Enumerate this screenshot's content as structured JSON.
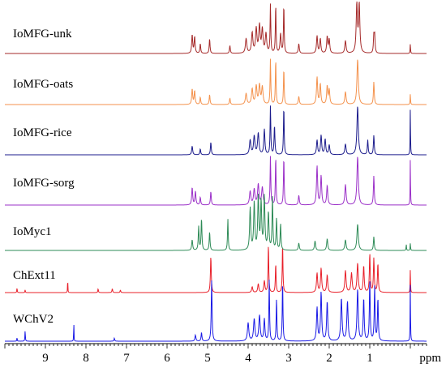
{
  "chart_data": {
    "type": "line",
    "title": "",
    "xlabel": "ppm",
    "ylabel": "",
    "xlim": [
      10.0,
      -0.4
    ],
    "x_reversed": true,
    "x_ticks": [
      "9",
      "8",
      "7",
      "6",
      "5",
      "4",
      "3",
      "2",
      "1"
    ],
    "x_tick_values": [
      9,
      8,
      7,
      6,
      5,
      4,
      3,
      2,
      1
    ],
    "grid": false,
    "legend": "none",
    "series": [
      {
        "name": "IoMFG-unk",
        "color": "#a52a2a",
        "peaks": [
          {
            "ppm": 5.38,
            "h": 0.38,
            "w": 0.014
          },
          {
            "ppm": 5.32,
            "h": 0.34,
            "w": 0.014
          },
          {
            "ppm": 5.18,
            "h": 0.2,
            "w": 0.012
          },
          {
            "ppm": 4.95,
            "h": 0.3,
            "w": 0.012
          },
          {
            "ppm": 4.45,
            "h": 0.16,
            "w": 0.012
          },
          {
            "ppm": 4.05,
            "h": 0.3,
            "w": 0.02
          },
          {
            "ppm": 3.9,
            "h": 0.42,
            "w": 0.02
          },
          {
            "ppm": 3.8,
            "h": 0.5,
            "w": 0.02
          },
          {
            "ppm": 3.72,
            "h": 0.56,
            "w": 0.02
          },
          {
            "ppm": 3.65,
            "h": 0.48,
            "w": 0.02
          },
          {
            "ppm": 3.56,
            "h": 0.4,
            "w": 0.02
          },
          {
            "ppm": 3.45,
            "h": 1.0,
            "w": 0.01
          },
          {
            "ppm": 3.32,
            "h": 1.0,
            "w": 0.01
          },
          {
            "ppm": 3.2,
            "h": 0.4,
            "w": 0.016
          },
          {
            "ppm": 3.12,
            "h": 1.0,
            "w": 0.01
          },
          {
            "ppm": 2.75,
            "h": 0.2,
            "w": 0.014
          },
          {
            "ppm": 2.3,
            "h": 0.36,
            "w": 0.016
          },
          {
            "ppm": 2.22,
            "h": 0.3,
            "w": 0.016
          },
          {
            "ppm": 2.05,
            "h": 0.34,
            "w": 0.016
          },
          {
            "ppm": 2.0,
            "h": 0.28,
            "w": 0.016
          },
          {
            "ppm": 1.6,
            "h": 0.26,
            "w": 0.018
          },
          {
            "ppm": 1.32,
            "h": 1.0,
            "w": 0.018
          },
          {
            "ppm": 1.26,
            "h": 1.0,
            "w": 0.018
          },
          {
            "ppm": 0.9,
            "h": 0.34,
            "w": 0.012
          },
          {
            "ppm": 0.88,
            "h": 0.36,
            "w": 0.012
          },
          {
            "ppm": 0.0,
            "h": 0.2,
            "w": 0.006
          }
        ]
      },
      {
        "name": "IoMFG-oats",
        "color": "#f4924d",
        "peaks": [
          {
            "ppm": 5.38,
            "h": 0.34,
            "w": 0.014
          },
          {
            "ppm": 5.32,
            "h": 0.3,
            "w": 0.014
          },
          {
            "ppm": 5.18,
            "h": 0.16,
            "w": 0.012
          },
          {
            "ppm": 4.95,
            "h": 0.22,
            "w": 0.012
          },
          {
            "ppm": 4.45,
            "h": 0.14,
            "w": 0.012
          },
          {
            "ppm": 4.05,
            "h": 0.24,
            "w": 0.02
          },
          {
            "ppm": 3.9,
            "h": 0.34,
            "w": 0.02
          },
          {
            "ppm": 3.8,
            "h": 0.4,
            "w": 0.02
          },
          {
            "ppm": 3.72,
            "h": 0.42,
            "w": 0.02
          },
          {
            "ppm": 3.65,
            "h": 0.38,
            "w": 0.02
          },
          {
            "ppm": 3.45,
            "h": 1.0,
            "w": 0.01
          },
          {
            "ppm": 3.32,
            "h": 1.0,
            "w": 0.01
          },
          {
            "ppm": 3.12,
            "h": 0.8,
            "w": 0.01
          },
          {
            "ppm": 2.75,
            "h": 0.18,
            "w": 0.014
          },
          {
            "ppm": 2.3,
            "h": 0.6,
            "w": 0.016
          },
          {
            "ppm": 2.22,
            "h": 0.45,
            "w": 0.016
          },
          {
            "ppm": 2.05,
            "h": 0.4,
            "w": 0.016
          },
          {
            "ppm": 2.0,
            "h": 0.32,
            "w": 0.016
          },
          {
            "ppm": 1.6,
            "h": 0.28,
            "w": 0.018
          },
          {
            "ppm": 1.3,
            "h": 1.0,
            "w": 0.02
          },
          {
            "ppm": 0.9,
            "h": 0.5,
            "w": 0.012
          },
          {
            "ppm": 0.0,
            "h": 0.24,
            "w": 0.006
          }
        ]
      },
      {
        "name": "IoMFG-rice",
        "color": "#1c1c8c",
        "peaks": [
          {
            "ppm": 5.38,
            "h": 0.18,
            "w": 0.014
          },
          {
            "ppm": 5.18,
            "h": 0.12,
            "w": 0.012
          },
          {
            "ppm": 4.92,
            "h": 0.26,
            "w": 0.012
          },
          {
            "ppm": 3.95,
            "h": 0.3,
            "w": 0.02
          },
          {
            "ppm": 3.85,
            "h": 0.38,
            "w": 0.02
          },
          {
            "ppm": 3.75,
            "h": 0.44,
            "w": 0.02
          },
          {
            "ppm": 3.6,
            "h": 0.52,
            "w": 0.016
          },
          {
            "ppm": 3.45,
            "h": 1.0,
            "w": 0.01
          },
          {
            "ppm": 3.35,
            "h": 0.6,
            "w": 0.012
          },
          {
            "ppm": 3.12,
            "h": 1.0,
            "w": 0.01
          },
          {
            "ppm": 2.3,
            "h": 0.3,
            "w": 0.016
          },
          {
            "ppm": 2.2,
            "h": 0.4,
            "w": 0.016
          },
          {
            "ppm": 2.1,
            "h": 0.32,
            "w": 0.016
          },
          {
            "ppm": 2.0,
            "h": 0.2,
            "w": 0.016
          },
          {
            "ppm": 1.6,
            "h": 0.22,
            "w": 0.018
          },
          {
            "ppm": 1.3,
            "h": 1.0,
            "w": 0.02
          },
          {
            "ppm": 1.05,
            "h": 0.3,
            "w": 0.012
          },
          {
            "ppm": 0.9,
            "h": 0.4,
            "w": 0.012
          },
          {
            "ppm": 0.0,
            "h": 1.0,
            "w": 0.005
          }
        ]
      },
      {
        "name": "IoMFG-sorg",
        "color": "#9b30c8",
        "peaks": [
          {
            "ppm": 5.38,
            "h": 0.36,
            "w": 0.014
          },
          {
            "ppm": 5.3,
            "h": 0.28,
            "w": 0.014
          },
          {
            "ppm": 5.18,
            "h": 0.16,
            "w": 0.012
          },
          {
            "ppm": 4.92,
            "h": 0.28,
            "w": 0.012
          },
          {
            "ppm": 3.95,
            "h": 0.28,
            "w": 0.02
          },
          {
            "ppm": 3.85,
            "h": 0.32,
            "w": 0.02
          },
          {
            "ppm": 3.75,
            "h": 0.42,
            "w": 0.02
          },
          {
            "ppm": 3.65,
            "h": 0.36,
            "w": 0.02
          },
          {
            "ppm": 3.45,
            "h": 1.0,
            "w": 0.01
          },
          {
            "ppm": 3.32,
            "h": 1.0,
            "w": 0.01
          },
          {
            "ppm": 3.12,
            "h": 1.0,
            "w": 0.01
          },
          {
            "ppm": 2.75,
            "h": 0.2,
            "w": 0.014
          },
          {
            "ppm": 2.3,
            "h": 0.8,
            "w": 0.016
          },
          {
            "ppm": 2.2,
            "h": 0.6,
            "w": 0.016
          },
          {
            "ppm": 2.05,
            "h": 0.4,
            "w": 0.016
          },
          {
            "ppm": 1.6,
            "h": 0.42,
            "w": 0.018
          },
          {
            "ppm": 1.3,
            "h": 1.0,
            "w": 0.02
          },
          {
            "ppm": 0.9,
            "h": 0.6,
            "w": 0.012
          },
          {
            "ppm": 0.0,
            "h": 1.0,
            "w": 0.005
          }
        ]
      },
      {
        "name": "IoMyc1",
        "color": "#2e8b57",
        "peaks": [
          {
            "ppm": 5.38,
            "h": 0.2,
            "w": 0.014
          },
          {
            "ppm": 5.22,
            "h": 0.45,
            "w": 0.012
          },
          {
            "ppm": 5.15,
            "h": 0.6,
            "w": 0.012
          },
          {
            "ppm": 4.95,
            "h": 0.35,
            "w": 0.012
          },
          {
            "ppm": 4.5,
            "h": 0.6,
            "w": 0.01
          },
          {
            "ppm": 3.95,
            "h": 0.8,
            "w": 0.016
          },
          {
            "ppm": 3.85,
            "h": 0.9,
            "w": 0.016
          },
          {
            "ppm": 3.75,
            "h": 1.0,
            "w": 0.016
          },
          {
            "ppm": 3.68,
            "h": 0.9,
            "w": 0.016
          },
          {
            "ppm": 3.6,
            "h": 1.0,
            "w": 0.016
          },
          {
            "ppm": 3.5,
            "h": 0.7,
            "w": 0.016
          },
          {
            "ppm": 3.4,
            "h": 1.0,
            "w": 0.012
          },
          {
            "ppm": 3.3,
            "h": 0.6,
            "w": 0.012
          },
          {
            "ppm": 3.2,
            "h": 0.5,
            "w": 0.012
          },
          {
            "ppm": 2.75,
            "h": 0.14,
            "w": 0.014
          },
          {
            "ppm": 2.35,
            "h": 0.18,
            "w": 0.016
          },
          {
            "ppm": 2.05,
            "h": 0.22,
            "w": 0.016
          },
          {
            "ppm": 1.6,
            "h": 0.2,
            "w": 0.018
          },
          {
            "ppm": 1.3,
            "h": 0.5,
            "w": 0.02
          },
          {
            "ppm": 0.9,
            "h": 0.26,
            "w": 0.012
          },
          {
            "ppm": 0.1,
            "h": 0.12,
            "w": 0.006
          },
          {
            "ppm": 0.0,
            "h": 0.14,
            "w": 0.006
          }
        ]
      },
      {
        "name": "ChExt11",
        "color": "#e8202a",
        "peaks": [
          {
            "ppm": 9.7,
            "h": 0.1,
            "w": 0.006
          },
          {
            "ppm": 9.5,
            "h": 0.06,
            "w": 0.006
          },
          {
            "ppm": 8.45,
            "h": 0.35,
            "w": 0.004
          },
          {
            "ppm": 7.7,
            "h": 0.08,
            "w": 0.008
          },
          {
            "ppm": 7.35,
            "h": 0.08,
            "w": 0.01
          },
          {
            "ppm": 7.15,
            "h": 0.05,
            "w": 0.01
          },
          {
            "ppm": 4.92,
            "h": 0.75,
            "w": 0.012
          },
          {
            "ppm": 3.9,
            "h": 0.12,
            "w": 0.016
          },
          {
            "ppm": 3.75,
            "h": 0.18,
            "w": 0.016
          },
          {
            "ppm": 3.6,
            "h": 0.24,
            "w": 0.016
          },
          {
            "ppm": 3.5,
            "h": 1.0,
            "w": 0.01
          },
          {
            "ppm": 3.32,
            "h": 0.6,
            "w": 0.01
          },
          {
            "ppm": 3.15,
            "h": 1.0,
            "w": 0.01
          },
          {
            "ppm": 2.3,
            "h": 0.4,
            "w": 0.016
          },
          {
            "ppm": 2.2,
            "h": 0.5,
            "w": 0.016
          },
          {
            "ppm": 2.05,
            "h": 0.36,
            "w": 0.016
          },
          {
            "ppm": 1.6,
            "h": 0.45,
            "w": 0.018
          },
          {
            "ppm": 1.45,
            "h": 0.4,
            "w": 0.018
          },
          {
            "ppm": 1.3,
            "h": 0.6,
            "w": 0.018
          },
          {
            "ppm": 1.15,
            "h": 0.55,
            "w": 0.014
          },
          {
            "ppm": 1.0,
            "h": 0.8,
            "w": 0.012
          },
          {
            "ppm": 0.9,
            "h": 0.7,
            "w": 0.012
          },
          {
            "ppm": 0.8,
            "h": 0.6,
            "w": 0.012
          },
          {
            "ppm": 0.0,
            "h": 0.5,
            "w": 0.005
          }
        ]
      },
      {
        "name": "WChV2",
        "color": "#1a1ae6",
        "peaks": [
          {
            "ppm": 9.5,
            "h": 0.18,
            "w": 0.006
          },
          {
            "ppm": 9.7,
            "h": 0.06,
            "w": 0.006
          },
          {
            "ppm": 8.3,
            "h": 0.36,
            "w": 0.004
          },
          {
            "ppm": 7.3,
            "h": 0.05,
            "w": 0.01
          },
          {
            "ppm": 5.3,
            "h": 0.1,
            "w": 0.014
          },
          {
            "ppm": 5.15,
            "h": 0.14,
            "w": 0.012
          },
          {
            "ppm": 4.9,
            "h": 1.0,
            "w": 0.012
          },
          {
            "ppm": 4.0,
            "h": 0.3,
            "w": 0.02
          },
          {
            "ppm": 3.85,
            "h": 0.36,
            "w": 0.02
          },
          {
            "ppm": 3.72,
            "h": 0.42,
            "w": 0.02
          },
          {
            "ppm": 3.6,
            "h": 0.36,
            "w": 0.016
          },
          {
            "ppm": 3.48,
            "h": 1.0,
            "w": 0.01
          },
          {
            "ppm": 3.3,
            "h": 0.7,
            "w": 0.01
          },
          {
            "ppm": 3.15,
            "h": 1.0,
            "w": 0.01
          },
          {
            "ppm": 2.3,
            "h": 0.55,
            "w": 0.016
          },
          {
            "ppm": 2.2,
            "h": 0.8,
            "w": 0.016
          },
          {
            "ppm": 2.05,
            "h": 0.65,
            "w": 0.016
          },
          {
            "ppm": 1.7,
            "h": 0.7,
            "w": 0.018
          },
          {
            "ppm": 1.55,
            "h": 0.65,
            "w": 0.018
          },
          {
            "ppm": 1.3,
            "h": 0.85,
            "w": 0.018
          },
          {
            "ppm": 1.15,
            "h": 0.7,
            "w": 0.014
          },
          {
            "ppm": 1.0,
            "h": 1.0,
            "w": 0.012
          },
          {
            "ppm": 0.88,
            "h": 0.9,
            "w": 0.012
          },
          {
            "ppm": 0.8,
            "h": 0.7,
            "w": 0.012
          },
          {
            "ppm": 0.0,
            "h": 1.0,
            "w": 0.005
          }
        ]
      }
    ]
  }
}
